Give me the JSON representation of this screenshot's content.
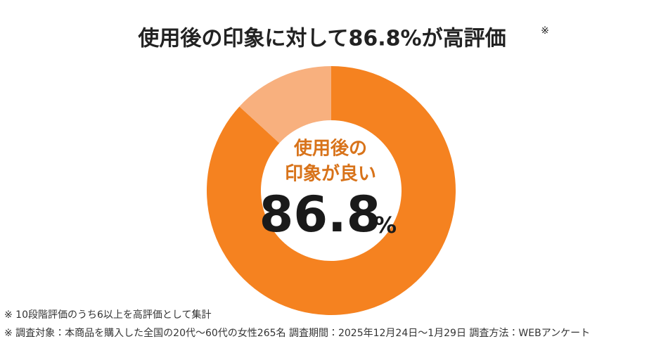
{
  "chart_data": {
    "type": "donut",
    "title": "使用後の印象に対して86.8%が高評価",
    "title_mark": "※",
    "categories": [
      "高評価",
      null
    ],
    "values": [
      86.8,
      13.2
    ],
    "colors": [
      "#f58220",
      "#f8b07e"
    ],
    "center_label": [
      "使用後の",
      "印象が良い"
    ],
    "center_value_label": {
      "number": "86.8",
      "unit": "%"
    },
    "footnotes": [
      "※ 10段階評価のうち6以上を高評価として集計",
      "※ 調査対象：本商品を購入した全国の20代〜60代の女性265名 調査期間：2025年12月24日〜1月29日 調査方法：WEBアンケート"
    ]
  }
}
